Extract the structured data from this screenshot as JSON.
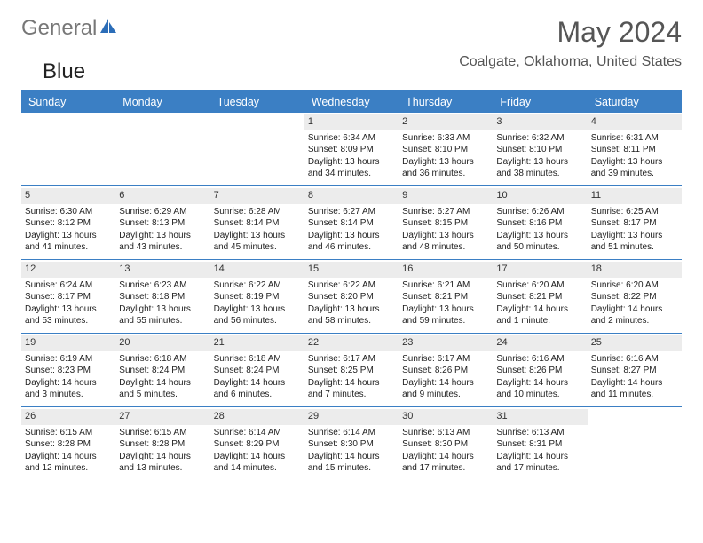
{
  "brand": {
    "part1": "Gener",
    "part2": "al",
    "part3": "Blue"
  },
  "title": "May 2024",
  "location": "Coalgate, Oklahoma, United States",
  "colors": {
    "accent": "#3b7fc4",
    "headerText": "#555",
    "cellBg": "#ececec"
  },
  "weekdays": [
    "Sunday",
    "Monday",
    "Tuesday",
    "Wednesday",
    "Thursday",
    "Friday",
    "Saturday"
  ],
  "weeks": [
    [
      null,
      null,
      null,
      {
        "n": "1",
        "sr": "Sunrise: 6:34 AM",
        "ss": "Sunset: 8:09 PM",
        "d1": "Daylight: 13 hours",
        "d2": "and 34 minutes."
      },
      {
        "n": "2",
        "sr": "Sunrise: 6:33 AM",
        "ss": "Sunset: 8:10 PM",
        "d1": "Daylight: 13 hours",
        "d2": "and 36 minutes."
      },
      {
        "n": "3",
        "sr": "Sunrise: 6:32 AM",
        "ss": "Sunset: 8:10 PM",
        "d1": "Daylight: 13 hours",
        "d2": "and 38 minutes."
      },
      {
        "n": "4",
        "sr": "Sunrise: 6:31 AM",
        "ss": "Sunset: 8:11 PM",
        "d1": "Daylight: 13 hours",
        "d2": "and 39 minutes."
      }
    ],
    [
      {
        "n": "5",
        "sr": "Sunrise: 6:30 AM",
        "ss": "Sunset: 8:12 PM",
        "d1": "Daylight: 13 hours",
        "d2": "and 41 minutes."
      },
      {
        "n": "6",
        "sr": "Sunrise: 6:29 AM",
        "ss": "Sunset: 8:13 PM",
        "d1": "Daylight: 13 hours",
        "d2": "and 43 minutes."
      },
      {
        "n": "7",
        "sr": "Sunrise: 6:28 AM",
        "ss": "Sunset: 8:14 PM",
        "d1": "Daylight: 13 hours",
        "d2": "and 45 minutes."
      },
      {
        "n": "8",
        "sr": "Sunrise: 6:27 AM",
        "ss": "Sunset: 8:14 PM",
        "d1": "Daylight: 13 hours",
        "d2": "and 46 minutes."
      },
      {
        "n": "9",
        "sr": "Sunrise: 6:27 AM",
        "ss": "Sunset: 8:15 PM",
        "d1": "Daylight: 13 hours",
        "d2": "and 48 minutes."
      },
      {
        "n": "10",
        "sr": "Sunrise: 6:26 AM",
        "ss": "Sunset: 8:16 PM",
        "d1": "Daylight: 13 hours",
        "d2": "and 50 minutes."
      },
      {
        "n": "11",
        "sr": "Sunrise: 6:25 AM",
        "ss": "Sunset: 8:17 PM",
        "d1": "Daylight: 13 hours",
        "d2": "and 51 minutes."
      }
    ],
    [
      {
        "n": "12",
        "sr": "Sunrise: 6:24 AM",
        "ss": "Sunset: 8:17 PM",
        "d1": "Daylight: 13 hours",
        "d2": "and 53 minutes."
      },
      {
        "n": "13",
        "sr": "Sunrise: 6:23 AM",
        "ss": "Sunset: 8:18 PM",
        "d1": "Daylight: 13 hours",
        "d2": "and 55 minutes."
      },
      {
        "n": "14",
        "sr": "Sunrise: 6:22 AM",
        "ss": "Sunset: 8:19 PM",
        "d1": "Daylight: 13 hours",
        "d2": "and 56 minutes."
      },
      {
        "n": "15",
        "sr": "Sunrise: 6:22 AM",
        "ss": "Sunset: 8:20 PM",
        "d1": "Daylight: 13 hours",
        "d2": "and 58 minutes."
      },
      {
        "n": "16",
        "sr": "Sunrise: 6:21 AM",
        "ss": "Sunset: 8:21 PM",
        "d1": "Daylight: 13 hours",
        "d2": "and 59 minutes."
      },
      {
        "n": "17",
        "sr": "Sunrise: 6:20 AM",
        "ss": "Sunset: 8:21 PM",
        "d1": "Daylight: 14 hours",
        "d2": "and 1 minute."
      },
      {
        "n": "18",
        "sr": "Sunrise: 6:20 AM",
        "ss": "Sunset: 8:22 PM",
        "d1": "Daylight: 14 hours",
        "d2": "and 2 minutes."
      }
    ],
    [
      {
        "n": "19",
        "sr": "Sunrise: 6:19 AM",
        "ss": "Sunset: 8:23 PM",
        "d1": "Daylight: 14 hours",
        "d2": "and 3 minutes."
      },
      {
        "n": "20",
        "sr": "Sunrise: 6:18 AM",
        "ss": "Sunset: 8:24 PM",
        "d1": "Daylight: 14 hours",
        "d2": "and 5 minutes."
      },
      {
        "n": "21",
        "sr": "Sunrise: 6:18 AM",
        "ss": "Sunset: 8:24 PM",
        "d1": "Daylight: 14 hours",
        "d2": "and 6 minutes."
      },
      {
        "n": "22",
        "sr": "Sunrise: 6:17 AM",
        "ss": "Sunset: 8:25 PM",
        "d1": "Daylight: 14 hours",
        "d2": "and 7 minutes."
      },
      {
        "n": "23",
        "sr": "Sunrise: 6:17 AM",
        "ss": "Sunset: 8:26 PM",
        "d1": "Daylight: 14 hours",
        "d2": "and 9 minutes."
      },
      {
        "n": "24",
        "sr": "Sunrise: 6:16 AM",
        "ss": "Sunset: 8:26 PM",
        "d1": "Daylight: 14 hours",
        "d2": "and 10 minutes."
      },
      {
        "n": "25",
        "sr": "Sunrise: 6:16 AM",
        "ss": "Sunset: 8:27 PM",
        "d1": "Daylight: 14 hours",
        "d2": "and 11 minutes."
      }
    ],
    [
      {
        "n": "26",
        "sr": "Sunrise: 6:15 AM",
        "ss": "Sunset: 8:28 PM",
        "d1": "Daylight: 14 hours",
        "d2": "and 12 minutes."
      },
      {
        "n": "27",
        "sr": "Sunrise: 6:15 AM",
        "ss": "Sunset: 8:28 PM",
        "d1": "Daylight: 14 hours",
        "d2": "and 13 minutes."
      },
      {
        "n": "28",
        "sr": "Sunrise: 6:14 AM",
        "ss": "Sunset: 8:29 PM",
        "d1": "Daylight: 14 hours",
        "d2": "and 14 minutes."
      },
      {
        "n": "29",
        "sr": "Sunrise: 6:14 AM",
        "ss": "Sunset: 8:30 PM",
        "d1": "Daylight: 14 hours",
        "d2": "and 15 minutes."
      },
      {
        "n": "30",
        "sr": "Sunrise: 6:13 AM",
        "ss": "Sunset: 8:30 PM",
        "d1": "Daylight: 14 hours",
        "d2": "and 17 minutes."
      },
      {
        "n": "31",
        "sr": "Sunrise: 6:13 AM",
        "ss": "Sunset: 8:31 PM",
        "d1": "Daylight: 14 hours",
        "d2": "and 17 minutes."
      },
      null
    ]
  ]
}
